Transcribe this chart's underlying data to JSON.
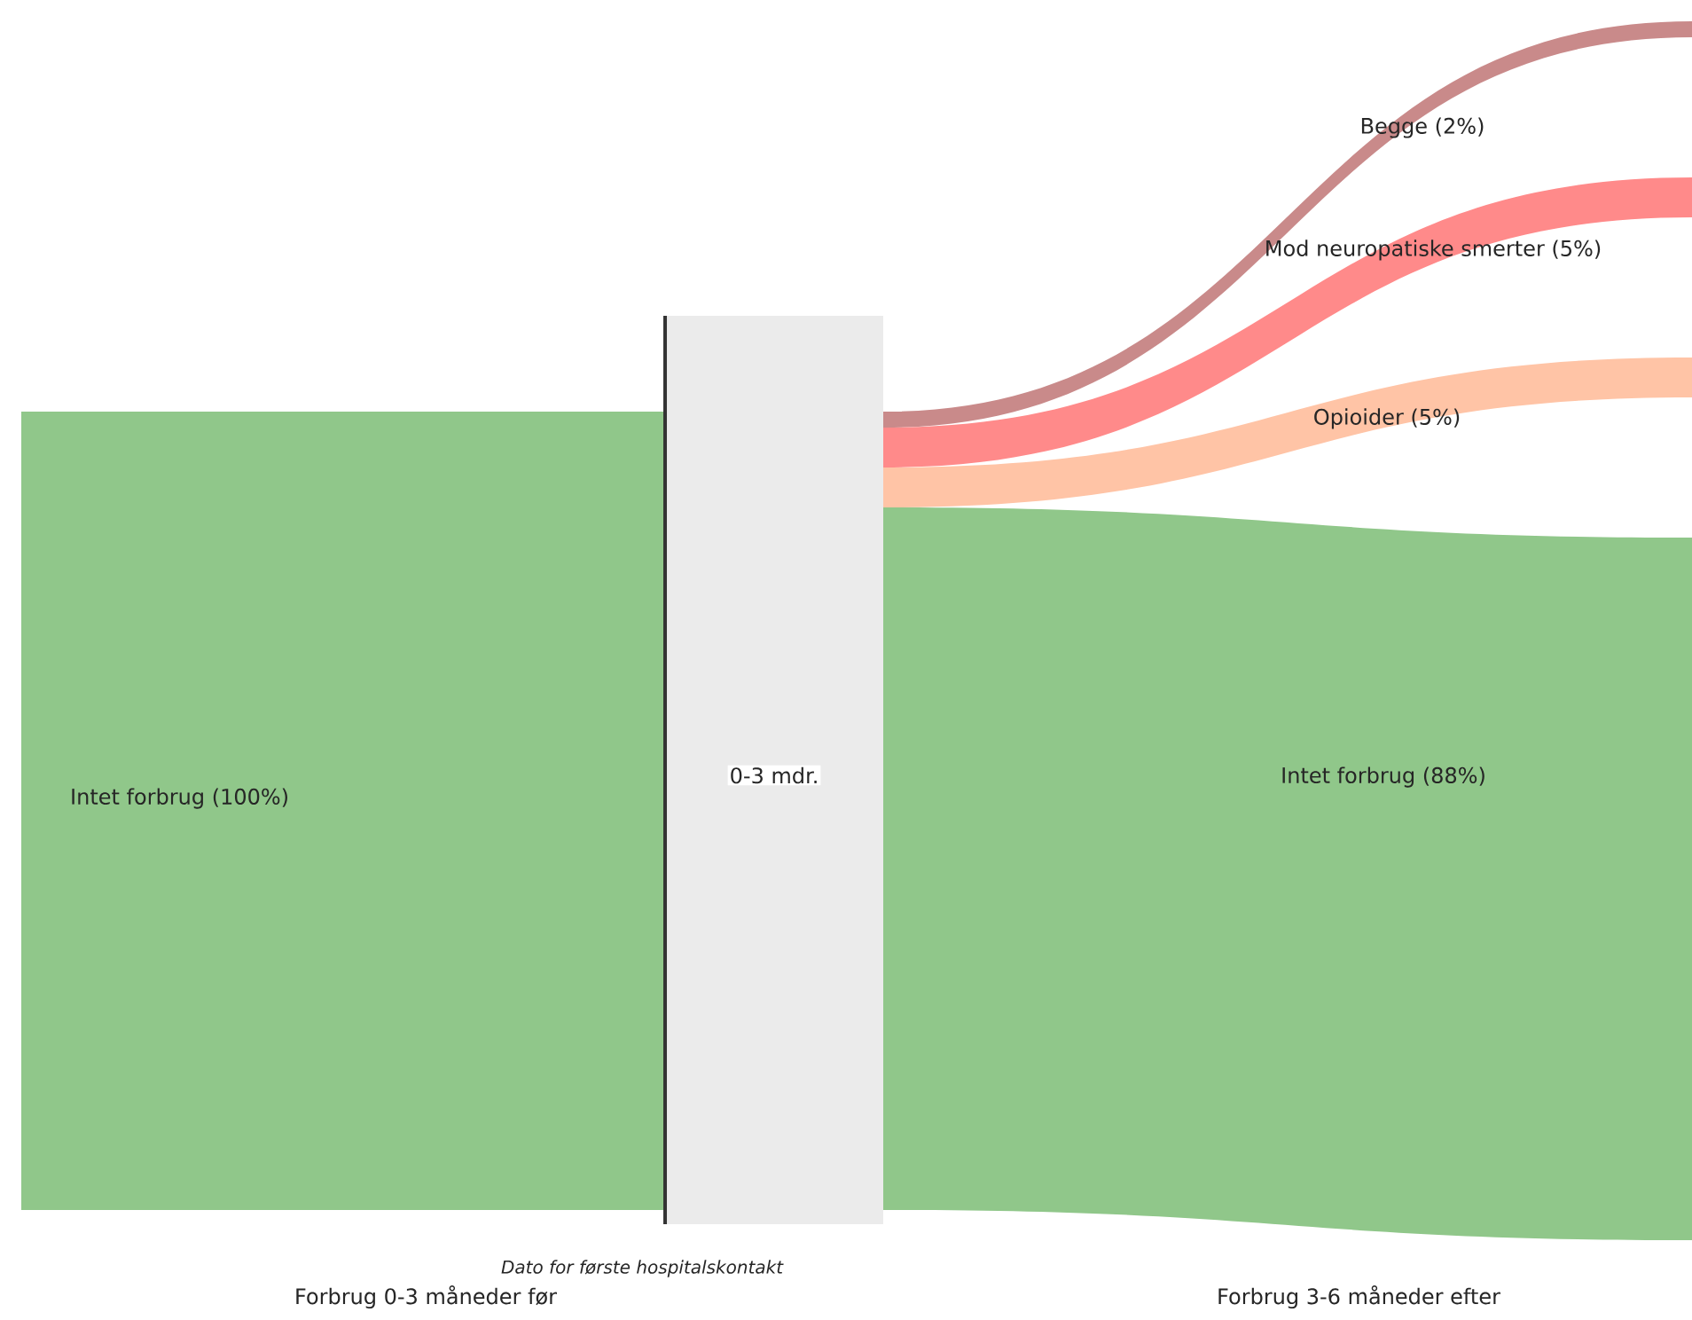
{
  "chart_data": {
    "type": "other",
    "categories": [
      "Intet forbrug",
      "Begge",
      "Mod neuropatiske smerter",
      "Opioider",
      "Intet forbrug"
    ],
    "values": [
      100,
      2,
      5,
      5,
      88
    ],
    "value_labels": [
      "(100%)",
      "(2%)",
      "(5%)",
      "(5%)",
      "(88%)"
    ],
    "colors": [
      "#90c78a",
      "#c98a8a",
      "#ff8a8a",
      "#ffc4a6",
      "#90c78a"
    ],
    "annotations": [
      "0-3 mdr.",
      "Dato for første hospitalskontakt",
      "Forbrug 0-3 måneder før",
      "Forbrug 3-6 måneder efter"
    ]
  }
}
